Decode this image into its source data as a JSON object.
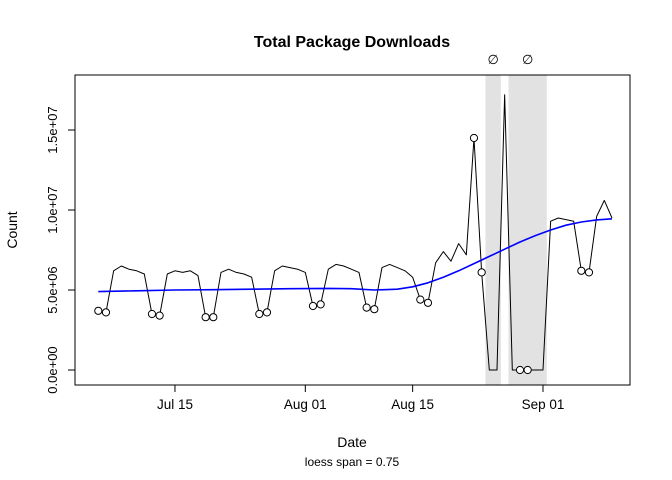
{
  "title": "Total Package Downloads",
  "xlabel": "Date",
  "ylabel": "Count",
  "subtitle": "loess span = 0.75",
  "colors": {
    "series": "#000000",
    "loess": "#0000ff",
    "band": "#e2e2e2",
    "missing_symbol": "#999999"
  },
  "chart_data": {
    "type": "line",
    "title": "Total Package Downloads",
    "xlabel": "Date",
    "ylabel": "Count",
    "subtitle": "loess span = 0.75",
    "grid": false,
    "legend": "none",
    "ylim": [
      0,
      17500000
    ],
    "yticks": [
      {
        "value": 0,
        "label": "0.0e+00"
      },
      {
        "value": 5000000,
        "label": "5.0e+06"
      },
      {
        "value": 10000000,
        "label": "1.0e+07"
      },
      {
        "value": 15000000,
        "label": "1.5e+07"
      }
    ],
    "xticks": [
      "Jul 15",
      "Aug 01",
      "Aug 15",
      "Sep 01"
    ],
    "missing_symbol": "∅",
    "missing_bands": [
      {
        "start": "Aug 25",
        "end": "Aug 26"
      },
      {
        "start": "Aug 28",
        "end": "Sep 01"
      }
    ],
    "x": [
      "Jul 05",
      "Jul 06",
      "Jul 07",
      "Jul 08",
      "Jul 09",
      "Jul 10",
      "Jul 11",
      "Jul 12",
      "Jul 13",
      "Jul 14",
      "Jul 15",
      "Jul 16",
      "Jul 17",
      "Jul 18",
      "Jul 19",
      "Jul 20",
      "Jul 21",
      "Jul 22",
      "Jul 23",
      "Jul 24",
      "Jul 25",
      "Jul 26",
      "Jul 27",
      "Jul 28",
      "Jul 29",
      "Jul 30",
      "Jul 31",
      "Aug 01",
      "Aug 02",
      "Aug 03",
      "Aug 04",
      "Aug 05",
      "Aug 06",
      "Aug 07",
      "Aug 08",
      "Aug 09",
      "Aug 10",
      "Aug 11",
      "Aug 12",
      "Aug 13",
      "Aug 14",
      "Aug 15",
      "Aug 16",
      "Aug 17",
      "Aug 18",
      "Aug 19",
      "Aug 20",
      "Aug 21",
      "Aug 22",
      "Aug 23",
      "Aug 24",
      "Aug 25",
      "Aug 26",
      "Aug 27",
      "Aug 28",
      "Aug 29",
      "Aug 30",
      "Aug 31",
      "Sep 01",
      "Sep 02",
      "Sep 03",
      "Sep 04",
      "Sep 05",
      "Sep 06",
      "Sep 07",
      "Sep 08",
      "Sep 09",
      "Sep 10"
    ],
    "series": [
      {
        "name": "daily_downloads",
        "values": [
          3700000,
          3600000,
          6200000,
          6500000,
          6300000,
          6200000,
          6000000,
          3500000,
          3400000,
          6000000,
          6200000,
          6100000,
          6200000,
          5900000,
          3300000,
          3300000,
          6100000,
          6300000,
          6100000,
          6000000,
          5800000,
          3500000,
          3600000,
          6200000,
          6500000,
          6400000,
          6300000,
          6100000,
          4000000,
          4100000,
          6300000,
          6600000,
          6500000,
          6300000,
          6100000,
          3900000,
          3800000,
          6400000,
          6600000,
          6400000,
          6200000,
          5800000,
          4400000,
          4200000,
          6700000,
          7400000,
          6800000,
          7900000,
          7200000,
          14500000,
          6100000,
          0,
          0,
          17200000,
          0,
          0,
          0,
          0,
          0,
          9300000,
          9500000,
          9400000,
          9300000,
          6200000,
          6100000,
          9600000,
          10600000,
          9500000
        ]
      },
      {
        "name": "loess_smooth",
        "points": [
          {
            "date": "Jul 05",
            "value": 4900000
          },
          {
            "date": "Jul 10",
            "value": 4950000
          },
          {
            "date": "Jul 15",
            "value": 5000000
          },
          {
            "date": "Jul 20",
            "value": 5020000
          },
          {
            "date": "Jul 25",
            "value": 5050000
          },
          {
            "date": "Jul 30",
            "value": 5080000
          },
          {
            "date": "Aug 04",
            "value": 5100000
          },
          {
            "date": "Aug 07",
            "value": 5080000
          },
          {
            "date": "Aug 10",
            "value": 5000000
          },
          {
            "date": "Aug 13",
            "value": 5050000
          },
          {
            "date": "Aug 15",
            "value": 5200000
          },
          {
            "date": "Aug 17",
            "value": 5450000
          },
          {
            "date": "Aug 19",
            "value": 5800000
          },
          {
            "date": "Aug 21",
            "value": 6200000
          },
          {
            "date": "Aug 23",
            "value": 6650000
          },
          {
            "date": "Aug 25",
            "value": 7100000
          },
          {
            "date": "Aug 27",
            "value": 7550000
          },
          {
            "date": "Aug 29",
            "value": 8000000
          },
          {
            "date": "Aug 31",
            "value": 8400000
          },
          {
            "date": "Sep 02",
            "value": 8750000
          },
          {
            "date": "Sep 04",
            "value": 9050000
          },
          {
            "date": "Sep 06",
            "value": 9250000
          },
          {
            "date": "Sep 08",
            "value": 9380000
          },
          {
            "date": "Sep 10",
            "value": 9450000
          }
        ]
      }
    ],
    "markers": [
      "Jul 05",
      "Jul 06",
      "Jul 12",
      "Jul 13",
      "Jul 19",
      "Jul 20",
      "Jul 26",
      "Jul 27",
      "Aug 02",
      "Aug 03",
      "Aug 09",
      "Aug 10",
      "Aug 16",
      "Aug 17",
      "Aug 23",
      "Aug 24",
      "Aug 29",
      "Aug 30",
      "Sep 06",
      "Sep 07"
    ]
  }
}
